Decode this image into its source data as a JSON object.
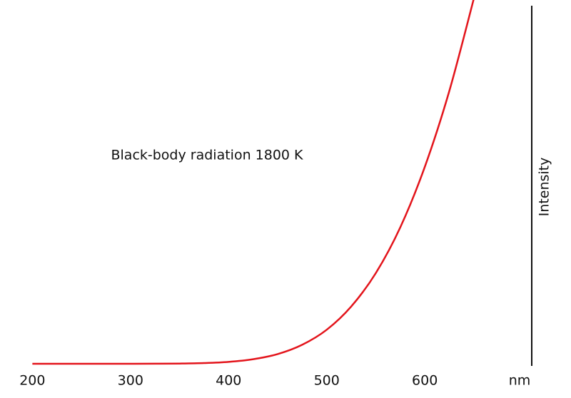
{
  "chart_data": {
    "type": "line",
    "title": "Black-body radiation 1800 K",
    "y_label": "Intensity",
    "x_label": "nm",
    "x": [
      200,
      225,
      250,
      275,
      300,
      325,
      350,
      375,
      400,
      425,
      450,
      475,
      500,
      525,
      550,
      575,
      600,
      625,
      650
    ],
    "series": [
      {
        "color": "#e3141b",
        "values": [
          0,
          0,
          0,
          0,
          0.003,
          0.015,
          0.06,
          0.2,
          0.53,
          1.27,
          2.7,
          5.3,
          9.5,
          16.0,
          25.3,
          38.1,
          55,
          76.2,
          102
        ]
      }
    ],
    "xlim": [
      167,
      709
    ],
    "ylim": [
      0,
      100
    ],
    "xticks": [
      200,
      300,
      400,
      500,
      600
    ]
  }
}
